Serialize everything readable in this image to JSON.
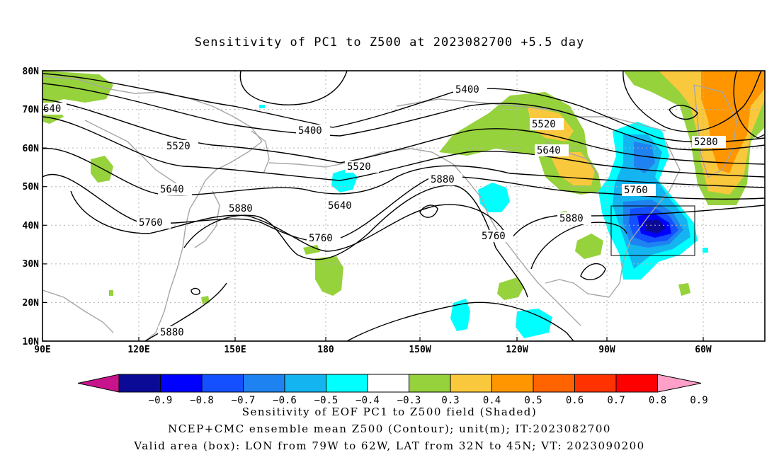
{
  "title": "Sensitivity of PC1 to Z500 at 2023082700 +5.5 day",
  "lat_labels": [
    "80N",
    "70N",
    "60N",
    "50N",
    "40N",
    "30N",
    "20N",
    "10N"
  ],
  "lon_labels": [
    "90E",
    "120E",
    "150E",
    "180",
    "150W",
    "120W",
    "90W",
    "60W"
  ],
  "contour_labels": [
    {
      "text": "5400",
      "id": "c5400a"
    },
    {
      "text": "5400",
      "id": "c5400b"
    },
    {
      "text": "5520",
      "id": "c5520a"
    },
    {
      "text": "5520",
      "id": "c5520b"
    },
    {
      "text": "5520",
      "id": "c5520c"
    },
    {
      "text": "5640",
      "id": "c5640a"
    },
    {
      "text": "5640",
      "id": "c5640b"
    },
    {
      "text": "5640",
      "id": "c5640c"
    },
    {
      "text": "640",
      "id": "c640"
    },
    {
      "text": "5760",
      "id": "c5760a"
    },
    {
      "text": "5760",
      "id": "c5760b"
    },
    {
      "text": "5760",
      "id": "c5760c"
    },
    {
      "text": "5760",
      "id": "c5760d"
    },
    {
      "text": "5880",
      "id": "c5880a"
    },
    {
      "text": "5880",
      "id": "c5880b"
    },
    {
      "text": "5880",
      "id": "c5880c"
    },
    {
      "text": "5280",
      "id": "c5280"
    }
  ],
  "colorbar": {
    "labels": [
      "−0.9",
      "−0.8",
      "−0.7",
      "−0.6",
      "−0.5",
      "−0.4",
      "−0.3",
      "0.3",
      "0.4",
      "0.5",
      "0.6",
      "0.7",
      "0.8",
      "0.9"
    ],
    "colors": [
      "#0a0a96",
      "#0000ff",
      "#1450ff",
      "#1e82f0",
      "#14b4f0",
      "#00ffff",
      "#ffffff",
      "#96d23c",
      "#fac83c",
      "#ff9600",
      "#ff6400",
      "#ff3200",
      "#ff0000"
    ],
    "low_end_color": "#c8148c",
    "high_end_color": "#ffa0c8"
  },
  "footer": {
    "line1": "Sensitivity of EOF PC1 to Z500 field (Shaded)",
    "line2": "NCEP+CMC ensemble mean Z500 (Contour); unit(m); IT:2023082700",
    "line3": "Valid area (box): LON from 79W to 62W, LAT from 32N to 45N; VT: 2023090200"
  }
}
